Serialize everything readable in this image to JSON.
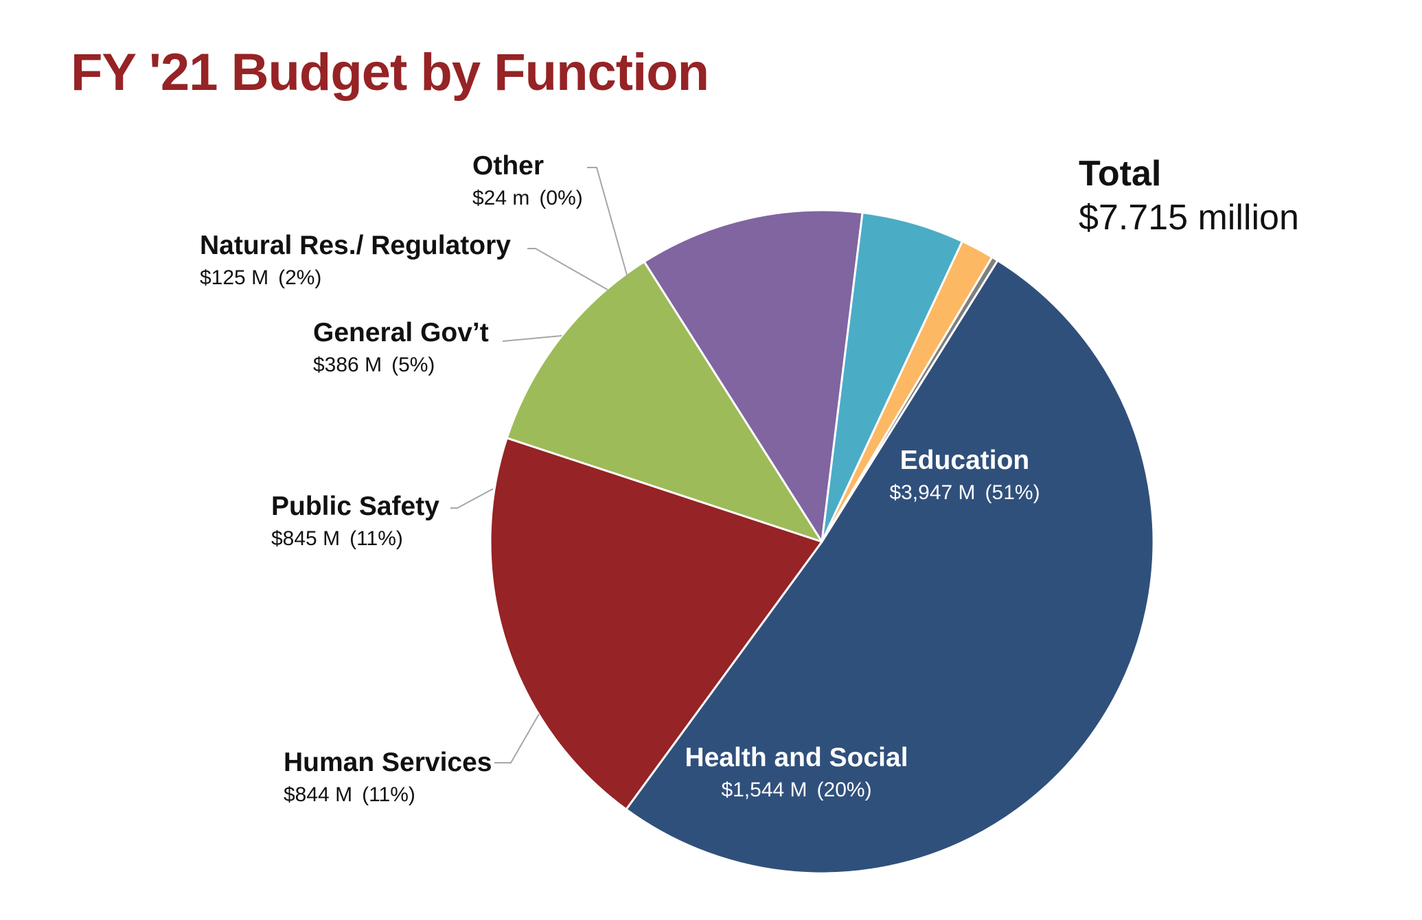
{
  "title": "FY '21 Budget by Function",
  "total": {
    "label": "Total",
    "value": "$7.715 million"
  },
  "chart_data": {
    "type": "pie",
    "title": "FY '21 Budget by Function",
    "slices": [
      {
        "name": "Education",
        "value": 3947,
        "label_value": "$3,947 M",
        "percent": "(51%)",
        "color": "#30507c"
      },
      {
        "name": "Health and Social",
        "value": 1544,
        "label_value": "$1,544 M",
        "percent": "(20%)",
        "color": "#962325"
      },
      {
        "name": "Human Services",
        "value": 844,
        "label_value": "$844 M",
        "percent": "(11%)",
        "color": "#9dbb59"
      },
      {
        "name": "Public Safety",
        "value": 845,
        "label_value": "$845 M",
        "percent": "(11%)",
        "color": "#8065a1"
      },
      {
        "name": "General Gov’t",
        "value": 386,
        "label_value": "$386 M",
        "percent": "(5%)",
        "color": "#4bacc6"
      },
      {
        "name": "Natural Res./ Regulatory",
        "value": 125,
        "label_value": "$125 M",
        "percent": "(2%)",
        "color": "#fdb863"
      },
      {
        "name": "Other",
        "value": 24,
        "label_value": "$24 m",
        "percent": "(0%)",
        "color": "#7f7f7f"
      }
    ]
  }
}
